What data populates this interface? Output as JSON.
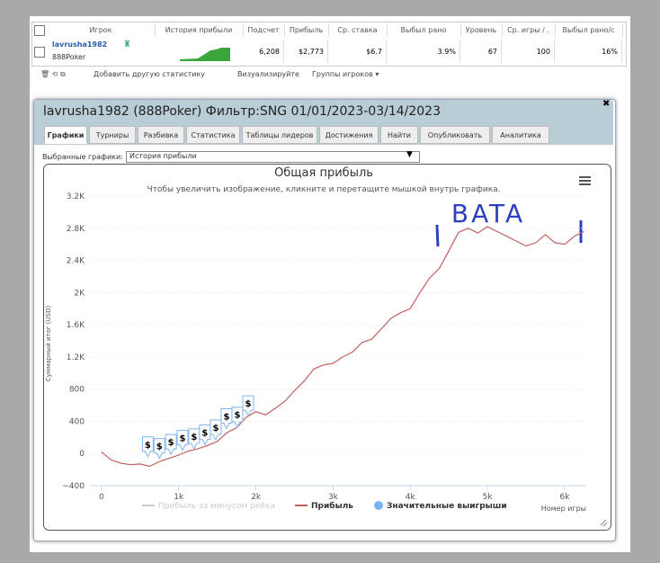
{
  "table": {
    "headers": [
      "Игрок",
      "История прибыли",
      "Подсчет",
      "Прибыль",
      "Ср. ставка",
      "Выбыл рано",
      "Уровень",
      "Ср. игры / .",
      "Выбыл рано/с"
    ],
    "player": "lavrusha1982",
    "site": "888Poker",
    "cells": [
      "6,208",
      "$2,773",
      "$6.7",
      "3.9%",
      "67",
      "100",
      "16%"
    ]
  },
  "toolbar": {
    "add_stat": "Добавить другую статистику",
    "visualize": "Визуализируйте",
    "groups": "Группы игроков ▾"
  },
  "window": {
    "title": "lavrusha1982 (888Poker) Фильтр:SNG 01/01/2023-03/14/2023",
    "tabs": [
      "Графики",
      "Турниры",
      "Разбивка",
      "Статистика",
      "Таблицы лидеров",
      "Достижения",
      "Найти",
      "Опубликовать",
      "Аналитика"
    ],
    "select_label": "Выбранные графики:",
    "select_value": "История прибыли"
  },
  "chart": {
    "type": "line",
    "title": "Общая прибыль",
    "subtitle": "Чтобы увеличить изображение, кликните и перетащите мышкой внутрь графика.",
    "y_label": "Суммарный итог (USD)",
    "x_label": "Номер игры",
    "annotation": "BATA",
    "xlim": [
      -150,
      6280
    ],
    "ylim": [
      -400,
      3200
    ],
    "xticks": [
      0,
      {
        "value": 1000,
        "label": "1k"
      },
      {
        "value": 2000,
        "label": "2k"
      },
      {
        "value": 3000,
        "label": "3k"
      },
      {
        "value": 4000,
        "label": "4k"
      },
      {
        "value": 5000,
        "label": "5k"
      },
      {
        "value": 6000,
        "label": "6k"
      }
    ],
    "yticks": [
      {
        "value": -400,
        "label": "−400"
      },
      0,
      400,
      800,
      {
        "value": 1200,
        "label": "1.2K"
      },
      {
        "value": 1600,
        "label": "1.6K"
      },
      {
        "value": 2000,
        "label": "2K"
      },
      {
        "value": 2400,
        "label": "2.4K"
      },
      {
        "value": 2800,
        "label": "2.8K"
      },
      {
        "value": 3200,
        "label": "3.2K"
      }
    ],
    "x": [
      0,
      125,
      250,
      375,
      500,
      625,
      750,
      875,
      1000,
      1125,
      1250,
      1375,
      1500,
      1625,
      1750,
      1875,
      2000,
      2125,
      2250,
      2375,
      2500,
      2625,
      2750,
      2875,
      3000,
      3125,
      3250,
      3375,
      3500,
      3625,
      3750,
      3875,
      4000,
      4125,
      4250,
      4375,
      4500,
      4625,
      4750,
      4875,
      5000,
      5125,
      5250,
      5375,
      5500,
      5625,
      5750,
      5875,
      6000,
      6125,
      6250
    ],
    "series": [
      {
        "name": "Прибыль за минусом рейка",
        "color": "#cccccc",
        "values": null
      },
      {
        "name": "Прибыль",
        "color": "#c0605f",
        "values": [
          20,
          -80,
          -120,
          -140,
          -130,
          -160,
          -100,
          -60,
          -20,
          30,
          60,
          100,
          150,
          260,
          320,
          450,
          520,
          480,
          560,
          650,
          780,
          900,
          1050,
          1100,
          1120,
          1200,
          1260,
          1380,
          1420,
          1550,
          1680,
          1750,
          1800,
          2000,
          2180,
          2300,
          2520,
          2750,
          2800,
          2740,
          2820,
          2760,
          2700,
          2640,
          2580,
          2620,
          2720,
          2620,
          2600,
          2700,
          2760
        ]
      }
    ],
    "wins": {
      "name": "Значительные выигрыши",
      "color": "#7cb5ec",
      "label": "$",
      "x": [
        600,
        750,
        900,
        1050,
        1200,
        1340,
        1480,
        1620,
        1760,
        1900
      ],
      "values": [
        -40,
        -60,
        -10,
        40,
        60,
        110,
        170,
        310,
        330,
        470
      ]
    }
  }
}
